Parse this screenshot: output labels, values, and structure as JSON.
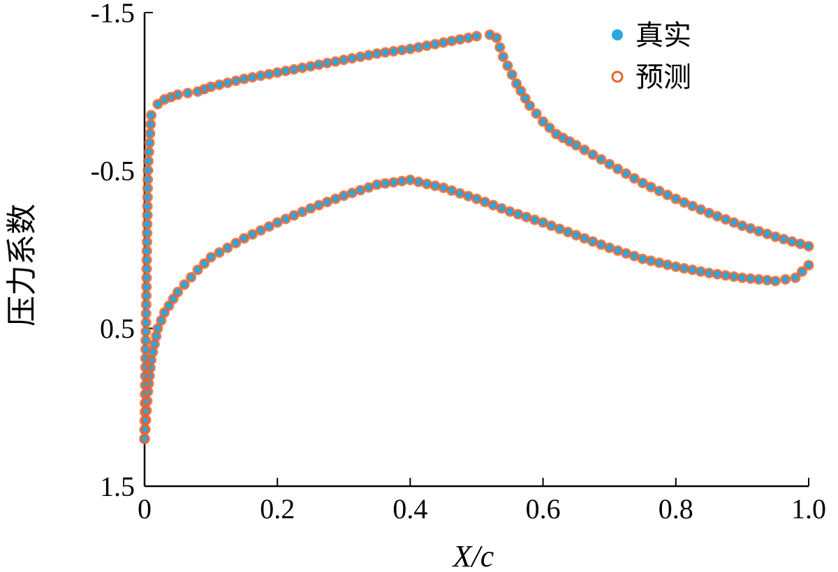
{
  "chart_data": {
    "type": "scatter",
    "title": "",
    "xlabel": "X/c",
    "ylabel": "压力系数",
    "xlim": [
      0,
      1.0
    ],
    "ylim": [
      -1.5,
      1.5
    ],
    "y_inverted": true,
    "x_ticks": [
      "0",
      "0.2",
      "0.4",
      "0.6",
      "0.8",
      "1.0"
    ],
    "x_tick_values": [
      0,
      0.2,
      0.4,
      0.6,
      0.8,
      1.0
    ],
    "y_ticks": [
      "-1.5",
      "-0.5",
      "0.5",
      "1.5"
    ],
    "y_tick_values": [
      -1.5,
      -0.5,
      0.5,
      1.5
    ],
    "legend_position": "top-right",
    "series": [
      {
        "name": "真实",
        "marker": "filled-circle",
        "color": "#29a8e0",
        "upper_surface": {
          "x": [
            0.0,
            0.005,
            0.01,
            0.02,
            0.03,
            0.05,
            0.08,
            0.1,
            0.15,
            0.2,
            0.25,
            0.3,
            0.35,
            0.4,
            0.45,
            0.5,
            0.52,
            0.53,
            0.54,
            0.56,
            0.58,
            0.6,
            0.62,
            0.65,
            0.7,
            0.75,
            0.8,
            0.85,
            0.9,
            0.95,
            1.0
          ],
          "y": [
            1.2,
            -0.5,
            -0.85,
            -0.92,
            -0.95,
            -0.98,
            -1.0,
            -1.03,
            -1.08,
            -1.12,
            -1.16,
            -1.2,
            -1.24,
            -1.27,
            -1.31,
            -1.35,
            -1.36,
            -1.34,
            -1.22,
            -1.05,
            -0.91,
            -0.81,
            -0.73,
            -0.66,
            -0.54,
            -0.42,
            -0.32,
            -0.23,
            -0.15,
            -0.08,
            -0.02
          ]
        },
        "lower_surface": {
          "x": [
            0.0,
            0.005,
            0.01,
            0.02,
            0.03,
            0.05,
            0.08,
            0.1,
            0.15,
            0.2,
            0.25,
            0.3,
            0.35,
            0.4,
            0.45,
            0.5,
            0.55,
            0.6,
            0.65,
            0.7,
            0.75,
            0.8,
            0.85,
            0.9,
            0.95,
            0.98,
            1.0
          ],
          "y": [
            1.2,
            0.9,
            0.7,
            0.5,
            0.4,
            0.27,
            0.13,
            0.05,
            -0.07,
            -0.17,
            -0.26,
            -0.34,
            -0.41,
            -0.44,
            -0.39,
            -0.32,
            -0.24,
            -0.17,
            -0.09,
            -0.01,
            0.06,
            0.11,
            0.15,
            0.18,
            0.2,
            0.18,
            0.1
          ]
        }
      },
      {
        "name": "预测",
        "marker": "open-circle",
        "color": "#e8622c",
        "upper_surface": {
          "x": [
            0.0,
            0.005,
            0.01,
            0.02,
            0.03,
            0.05,
            0.08,
            0.1,
            0.15,
            0.2,
            0.25,
            0.3,
            0.35,
            0.4,
            0.45,
            0.5,
            0.52,
            0.53,
            0.54,
            0.56,
            0.58,
            0.6,
            0.62,
            0.65,
            0.7,
            0.75,
            0.8,
            0.85,
            0.9,
            0.95,
            1.0
          ],
          "y": [
            1.2,
            -0.5,
            -0.85,
            -0.92,
            -0.95,
            -0.98,
            -1.0,
            -1.03,
            -1.08,
            -1.12,
            -1.16,
            -1.2,
            -1.24,
            -1.27,
            -1.31,
            -1.35,
            -1.36,
            -1.34,
            -1.22,
            -1.05,
            -0.91,
            -0.81,
            -0.73,
            -0.66,
            -0.54,
            -0.42,
            -0.32,
            -0.23,
            -0.15,
            -0.08,
            -0.02
          ]
        },
        "lower_surface": {
          "x": [
            0.0,
            0.005,
            0.01,
            0.02,
            0.03,
            0.05,
            0.08,
            0.1,
            0.15,
            0.2,
            0.25,
            0.3,
            0.35,
            0.4,
            0.45,
            0.5,
            0.55,
            0.6,
            0.65,
            0.7,
            0.75,
            0.8,
            0.85,
            0.9,
            0.95,
            0.98,
            1.0
          ],
          "y": [
            1.2,
            0.9,
            0.7,
            0.5,
            0.4,
            0.27,
            0.13,
            0.05,
            -0.07,
            -0.17,
            -0.26,
            -0.34,
            -0.41,
            -0.44,
            -0.39,
            -0.32,
            -0.24,
            -0.17,
            -0.09,
            -0.01,
            0.06,
            0.11,
            0.15,
            0.18,
            0.2,
            0.18,
            0.1
          ]
        }
      }
    ]
  }
}
